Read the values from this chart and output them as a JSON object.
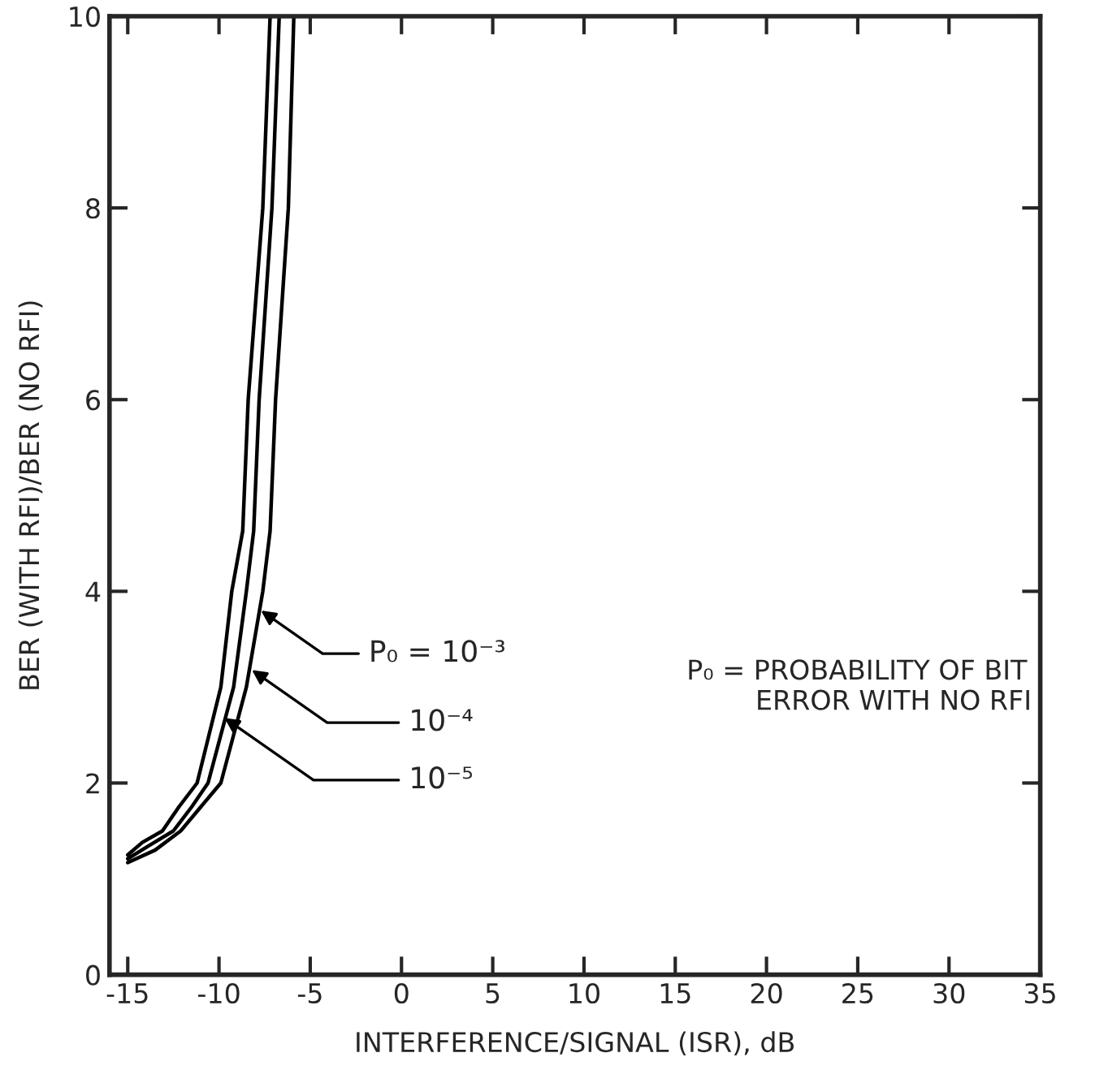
{
  "chart_data": {
    "type": "line",
    "xlabel": "INTERFERENCE/SIGNAL (ISR), dB",
    "ylabel": "BER (WITH RFI)/BER (NO RFI)",
    "series": [
      {
        "color": "#000000",
        "x": [
          -15,
          -13.5,
          -12.1,
          -11.0,
          -9.9,
          -8.5,
          -7.6,
          -7.2,
          -6.9,
          -6.2,
          -5.9
        ],
        "values": [
          1.17,
          1.3,
          1.5,
          1.75,
          2.0,
          3.0,
          4.0,
          4.63,
          6.0,
          8.0,
          10.0
        ]
      },
      {
        "color": "#000000",
        "x": [
          -15,
          -13.8,
          -12.5,
          -11.5,
          -10.6,
          -9.2,
          -8.5,
          -8.1,
          -7.8,
          -7.1,
          -6.7
        ],
        "values": [
          1.21,
          1.35,
          1.5,
          1.75,
          2.0,
          3.0,
          4.0,
          4.63,
          6.0,
          8.0,
          10.0
        ]
      },
      {
        "color": "#000000",
        "x": [
          -15,
          -14.2,
          -13.1,
          -12.2,
          -11.2,
          -9.9,
          -9.3,
          -8.7,
          -8.4,
          -7.6,
          -7.2
        ],
        "values": [
          1.25,
          1.38,
          1.5,
          1.75,
          2.0,
          3.0,
          4.0,
          4.63,
          6.0,
          8.0,
          10.0
        ]
      }
    ],
    "annotations": [
      {
        "text": "P₀ = 10⁻³",
        "x": -7.7,
        "y": 3.8
      },
      {
        "text": "10⁻⁴",
        "x": -8.2,
        "y": 3.18
      },
      {
        "text": "10⁻⁵",
        "x": -9.7,
        "y": 2.68
      },
      "P₀ = PROBABILITY OF BIT\n        ERROR WITH NO RFI"
    ],
    "xlim": [
      -16,
      35
    ],
    "xticks": [
      -15,
      -10,
      -5,
      0,
      5,
      10,
      15,
      20,
      25,
      30,
      35
    ],
    "ylim": [
      0,
      10
    ],
    "yticks": [
      0,
      2,
      4,
      6,
      8,
      10
    ],
    "grid": false,
    "legend": false,
    "marker": "none",
    "line_style": "solid"
  }
}
